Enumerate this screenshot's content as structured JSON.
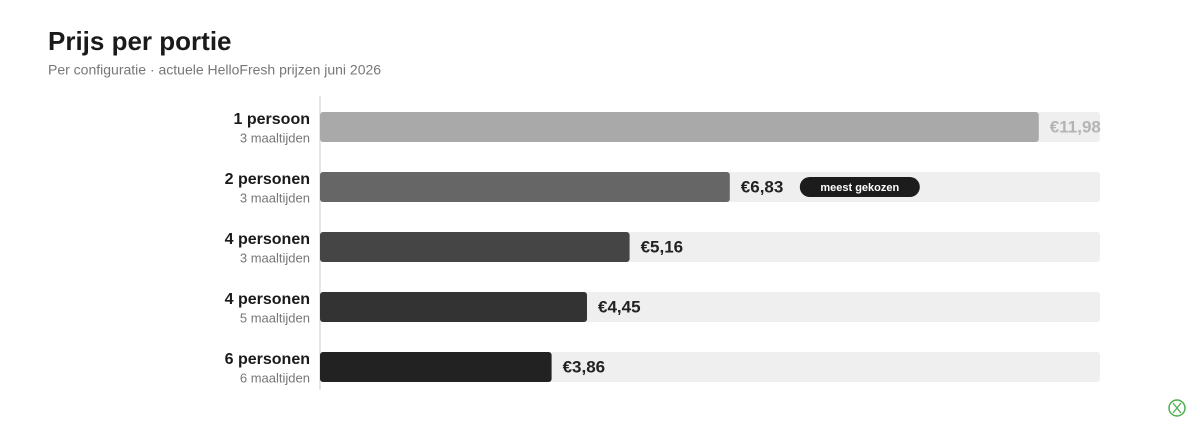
{
  "chart_data": {
    "type": "bar",
    "orientation": "horizontal",
    "title": "Prijs per portie",
    "subtitle": "Per configuratie · actuele HelloFresh prijzen juni 2026",
    "categories": [
      "1 persoon",
      "2 personen",
      "4 personen",
      "4 personen",
      "6 personen"
    ],
    "sublabels": [
      "3 maaltijden",
      "3 maaltijden",
      "3 maaltijden",
      "5 maaltijden",
      "6 maaltijden"
    ],
    "values": [
      11.98,
      6.83,
      5.16,
      4.45,
      3.86
    ],
    "value_labels": [
      "€11,98",
      "€6,83",
      "€5,16",
      "€4,45",
      "€3,86"
    ],
    "colors": [
      "#a9a9a9",
      "#666666",
      "#454545",
      "#333333",
      "#222222"
    ],
    "label_colors": [
      "#b4b4b4",
      "#222222",
      "#222222",
      "#222222",
      "#222222"
    ],
    "badges": [
      null,
      "meest gekozen",
      null,
      null,
      null
    ],
    "track_color": "#efefef",
    "xlim": [
      0,
      13
    ]
  }
}
